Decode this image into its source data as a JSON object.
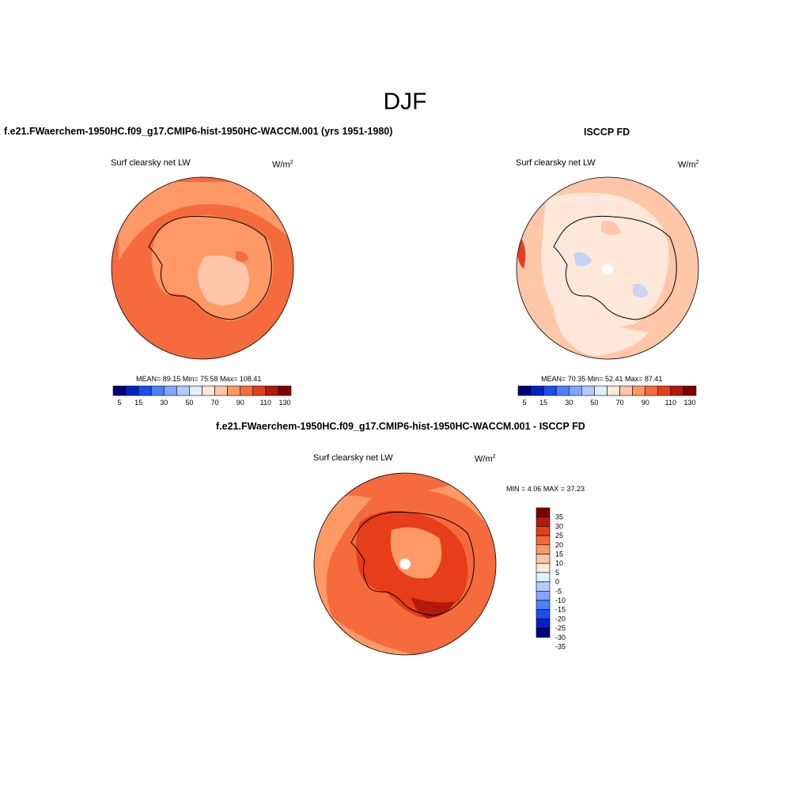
{
  "title": "DJF",
  "palette_13": [
    "#00007f",
    "#0022c4",
    "#1a4df2",
    "#4d80ff",
    "#80a6ff",
    "#b3ccff",
    "#e0f0ff",
    "#ffe8d9",
    "#ffc6a8",
    "#ff9966",
    "#f56b3d",
    "#e63d1a",
    "#b31a0a",
    "#800000"
  ],
  "panels": {
    "model": {
      "title": "f.e21.FWaerchem-1950HC.f09_g17.CMIP6-hist-1950HC-WACCM.001 (yrs 1951-1980)",
      "variable": "Surf clearsky net LW",
      "units_base": "W/m",
      "units_exp": "2",
      "stats": "MEAN=  89.15  Min=  75.58  Max= 108.41",
      "colorbar_labels": [
        "5",
        "15",
        "30",
        "50",
        "70",
        "90",
        "110",
        "130"
      ]
    },
    "obs": {
      "title": "ISCCP FD",
      "variable": "Surf clearsky net LW",
      "units_base": "W/m",
      "units_exp": "2",
      "stats": "MEAN=  70.35  Min=  52.41  Max=  87.41",
      "colorbar_labels": [
        "5",
        "15",
        "30",
        "50",
        "70",
        "90",
        "110",
        "130"
      ]
    },
    "diff": {
      "title": "f.e21.FWaerchem-1950HC.f09_g17.CMIP6-hist-1950HC-WACCM.001 - ISCCP FD",
      "variable": "Surf clearsky net LW",
      "units_base": "W/m",
      "units_exp": "2",
      "stats": "MIN =   4.06 MAX =  37.23",
      "colorbar_labels": [
        "35",
        "30",
        "25",
        "20",
        "15",
        "10",
        "5",
        "0",
        "-5",
        "-10",
        "-15",
        "-20",
        "-25",
        "-30",
        "-35"
      ],
      "colorbar_colors": [
        "#800000",
        "#b31a0a",
        "#e63d1a",
        "#f56b3d",
        "#ff9966",
        "#ffc6a8",
        "#ffe8d9",
        "#e0f0ff",
        "#b3ccff",
        "#80a6ff",
        "#4d80ff",
        "#1a4df2",
        "#0022c4",
        "#00007f"
      ]
    }
  }
}
